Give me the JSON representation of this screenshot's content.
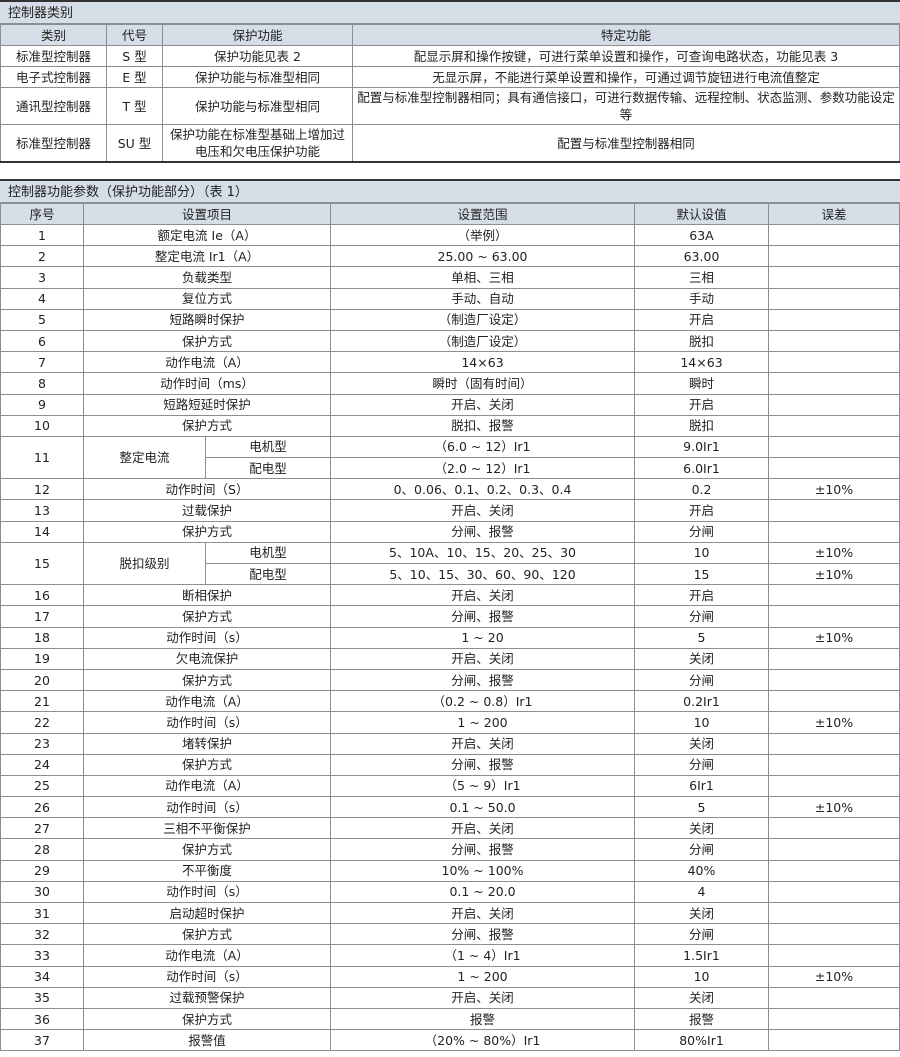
{
  "table1": {
    "title": "控制器类别",
    "headers": [
      "类别",
      "代号",
      "保护功能",
      "特定功能"
    ],
    "rows": [
      [
        "标准型控制器",
        "S 型",
        "保护功能见表 2",
        "配显示屏和操作按键，可进行菜单设置和操作，可查询电路状态，功能见表 3"
      ],
      [
        "电子式控制器",
        "E 型",
        "保护功能与标准型相同",
        "无显示屏，不能进行菜单设置和操作，可通过调节旋钮进行电流值整定"
      ],
      [
        "通讯型控制器",
        "T 型",
        "保护功能与标准型相同",
        "配置与标准型控制器相同；具有通信接口，可进行数据传输、远程控制、状态监测、参数功能设定等"
      ],
      [
        "标准型控制器",
        "SU 型",
        "保护功能在标准型基础上增加过电压和欠电压保护功能",
        "配置与标准型控制器相同"
      ]
    ]
  },
  "table2": {
    "title": "控制器功能参数（保护功能部分）（表 1）",
    "headers": [
      "序号",
      "设置项目",
      "设置范围",
      "默认设值",
      "误差"
    ],
    "rows": [
      {
        "no": "1",
        "item": "额定电流 Ie（A）",
        "range": "（举例）",
        "default": "63A",
        "error": ""
      },
      {
        "no": "2",
        "item": "整定电流 Ir1（A）",
        "range": "25.00 ~ 63.00",
        "default": "63.00",
        "error": ""
      },
      {
        "no": "3",
        "item": "负载类型",
        "range": "单相、三相",
        "default": "三相",
        "error": ""
      },
      {
        "no": "4",
        "item": "复位方式",
        "range": "手动、自动",
        "default": "手动",
        "error": ""
      },
      {
        "no": "5",
        "item": "短路瞬时保护",
        "range": "（制造厂设定）",
        "default": "开启",
        "error": ""
      },
      {
        "no": "6",
        "item": "保护方式",
        "range": "（制造厂设定）",
        "default": "脱扣",
        "error": ""
      },
      {
        "no": "7",
        "item": "动作电流（A）",
        "range": "14×63",
        "default": "14×63",
        "error": ""
      },
      {
        "no": "8",
        "item": "动作时间（ms）",
        "range": "瞬时（固有时间）",
        "default": "瞬时",
        "error": ""
      },
      {
        "no": "9",
        "item": "短路短延时保护",
        "range": "开启、关闭",
        "default": "开启",
        "error": ""
      },
      {
        "no": "10",
        "item": "保护方式",
        "range": "脱扣、报警",
        "default": "脱扣",
        "error": ""
      },
      {
        "no": "11",
        "item": "整定电流",
        "sub": [
          {
            "type": "电机型",
            "range": "（6.0 ~ 12）Ir1",
            "default": "9.0Ir1",
            "error": ""
          },
          {
            "type": "配电型",
            "range": "（2.0 ~ 12）Ir1",
            "default": "6.0Ir1",
            "error": ""
          }
        ]
      },
      {
        "no": "12",
        "item": "动作时间（S）",
        "range": "0、0.06、0.1、0.2、0.3、0.4",
        "default": "0.2",
        "error": "±10%"
      },
      {
        "no": "13",
        "item": "过载保护",
        "range": "开启、关闭",
        "default": "开启",
        "error": ""
      },
      {
        "no": "14",
        "item": "保护方式",
        "range": "分闸、报警",
        "default": "分闸",
        "error": ""
      },
      {
        "no": "15",
        "item": "脱扣级别",
        "sub": [
          {
            "type": "电机型",
            "range": "5、10A、10、15、20、25、30",
            "default": "10",
            "error": "±10%"
          },
          {
            "type": "配电型",
            "range": "5、10、15、30、60、90、120",
            "default": "15",
            "error": "±10%"
          }
        ]
      },
      {
        "no": "16",
        "item": "断相保护",
        "range": "开启、关闭",
        "default": "开启",
        "error": ""
      },
      {
        "no": "17",
        "item": "保护方式",
        "range": "分闸、报警",
        "default": "分闸",
        "error": ""
      },
      {
        "no": "18",
        "item": "动作时间（s）",
        "range": "1 ~ 20",
        "default": "5",
        "error": "±10%"
      },
      {
        "no": "19",
        "item": "欠电流保护",
        "range": "开启、关闭",
        "default": "关闭",
        "error": ""
      },
      {
        "no": "20",
        "item": "保护方式",
        "range": "分闸、报警",
        "default": "分闸",
        "error": ""
      },
      {
        "no": "21",
        "item": "动作电流（A）",
        "range": "（0.2 ~ 0.8）Ir1",
        "default": "0.2Ir1",
        "error": ""
      },
      {
        "no": "22",
        "item": "动作时间（s）",
        "range": "1 ~ 200",
        "default": "10",
        "error": "±10%"
      },
      {
        "no": "23",
        "item": "堵转保护",
        "range": "开启、关闭",
        "default": "关闭",
        "error": ""
      },
      {
        "no": "24",
        "item": "保护方式",
        "range": "分闸、报警",
        "default": "分闸",
        "error": ""
      },
      {
        "no": "25",
        "item": "动作电流（A）",
        "range": "（5 ~ 9）Ir1",
        "default": "6Ir1",
        "error": ""
      },
      {
        "no": "26",
        "item": "动作时间（s）",
        "range": "0.1 ~ 50.0",
        "default": "5",
        "error": "±10%"
      },
      {
        "no": "27",
        "item": "三相不平衡保护",
        "range": "开启、关闭",
        "default": "关闭",
        "error": ""
      },
      {
        "no": "28",
        "item": "保护方式",
        "range": "分闸、报警",
        "default": "分闸",
        "error": ""
      },
      {
        "no": "29",
        "item": "不平衡度",
        "range": "10% ~ 100%",
        "default": "40%",
        "error": ""
      },
      {
        "no": "30",
        "item": "动作时间（s）",
        "range": "0.1 ~ 20.0",
        "default": "4",
        "error": ""
      },
      {
        "no": "31",
        "item": "启动超时保护",
        "range": "开启、关闭",
        "default": "关闭",
        "error": ""
      },
      {
        "no": "32",
        "item": "保护方式",
        "range": "分闸、报警",
        "default": "分闸",
        "error": ""
      },
      {
        "no": "33",
        "item": "动作电流（A）",
        "range": "（1 ~ 4）Ir1",
        "default": "1.5Ir1",
        "error": ""
      },
      {
        "no": "34",
        "item": "动作时间（s）",
        "range": "1 ~ 200",
        "default": "10",
        "error": "±10%"
      },
      {
        "no": "35",
        "item": "过载预警保护",
        "range": "开启、关闭",
        "default": "关闭",
        "error": ""
      },
      {
        "no": "36",
        "item": "保护方式",
        "range": "报警",
        "default": "报警",
        "error": ""
      },
      {
        "no": "37",
        "item": "报警值",
        "range": "（20% ~ 80%）Ir1",
        "default": "80%Ir1",
        "error": ""
      }
    ]
  }
}
